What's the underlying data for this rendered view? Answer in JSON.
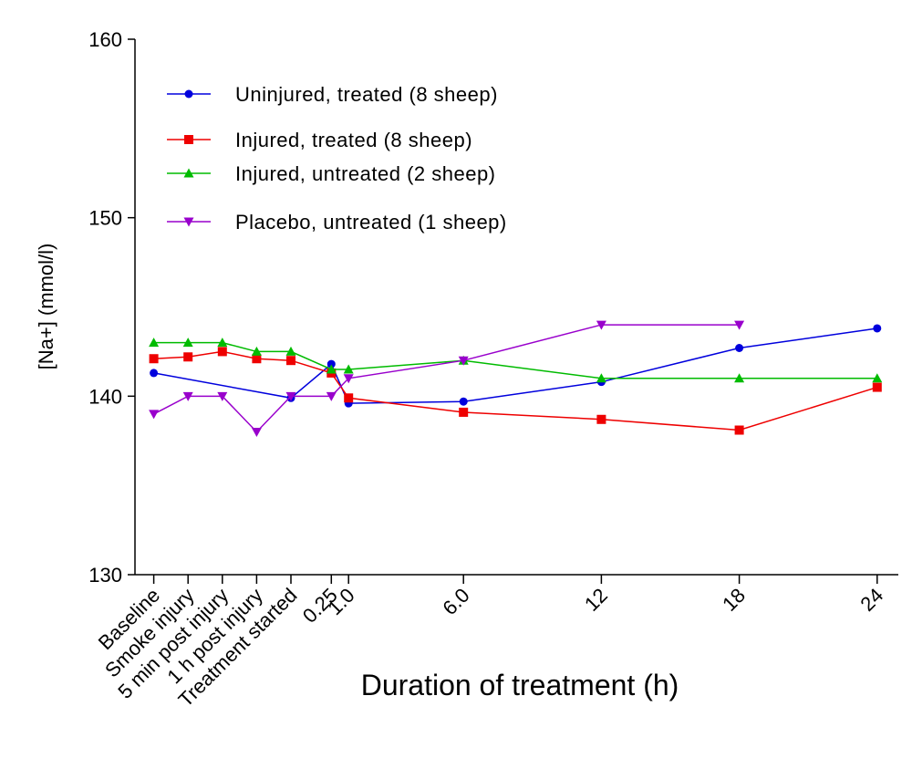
{
  "chart_data": {
    "type": "line",
    "xlabel": "Duration of treatment (h)",
    "ylabel": "[Na+] (mmol/l)",
    "ylim": [
      130,
      160
    ],
    "yticks": [
      130,
      140,
      150,
      160
    ],
    "categories": [
      "Baseline",
      "Smoke injury",
      "5 min post injury",
      "1 h post injury",
      "Treatment started",
      "0.25",
      "1.0",
      "6.0",
      "12",
      "18",
      "24"
    ],
    "x_positions": [
      -5,
      -4,
      -3,
      -2,
      -1,
      0.25,
      1,
      6,
      12,
      18,
      24
    ],
    "grid": false,
    "legend_position": "top-left",
    "series": [
      {
        "name": "Uninjured, treated (8 sheep)",
        "color": "#0000dd",
        "marker": "circle",
        "values": [
          141.3,
          null,
          null,
          null,
          139.9,
          141.8,
          139.6,
          139.7,
          140.8,
          142.7,
          143.8
        ]
      },
      {
        "name": "Injured, treated (8 sheep)",
        "color": "#ee0000",
        "marker": "square",
        "values": [
          142.1,
          142.2,
          142.5,
          142.1,
          142.0,
          141.3,
          139.9,
          139.1,
          138.7,
          138.1,
          140.5
        ]
      },
      {
        "name": "Injured, untreated (2 sheep)",
        "color": "#00bb00",
        "marker": "triangle-up",
        "values": [
          143.0,
          143.0,
          143.0,
          142.5,
          142.5,
          141.5,
          141.5,
          142.0,
          141.0,
          141.0,
          141.0
        ]
      },
      {
        "name": "Placebo, untreated (1 sheep)",
        "color": "#9900cc",
        "marker": "triangle-down",
        "values": [
          139.0,
          140.0,
          140.0,
          138.0,
          140.0,
          140.0,
          141.0,
          142.0,
          144.0,
          144.0,
          null
        ]
      }
    ]
  }
}
